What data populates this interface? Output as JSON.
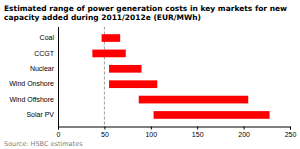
{
  "chart_data": {
    "type": "bar",
    "orientation": "horizontal",
    "title": "Estimated range of power generation costs in key markets for new capacity added during 2011/2012e (EUR/MWh)",
    "categories": [
      "Coal",
      "CCGT",
      "Nuclear",
      "Wind Onshore",
      "Wind Offshore",
      "Solar PV"
    ],
    "starts": [
      47,
      37,
      55,
      55,
      87,
      103
    ],
    "ends": [
      67,
      73,
      90,
      107,
      205,
      228
    ],
    "color": "#ff0000",
    "xlim": [
      0,
      250
    ],
    "xticks": [
      0,
      50,
      100,
      150,
      200,
      250
    ],
    "reference_line": 50,
    "source": "Source: HSBC estimates",
    "grid": false
  }
}
